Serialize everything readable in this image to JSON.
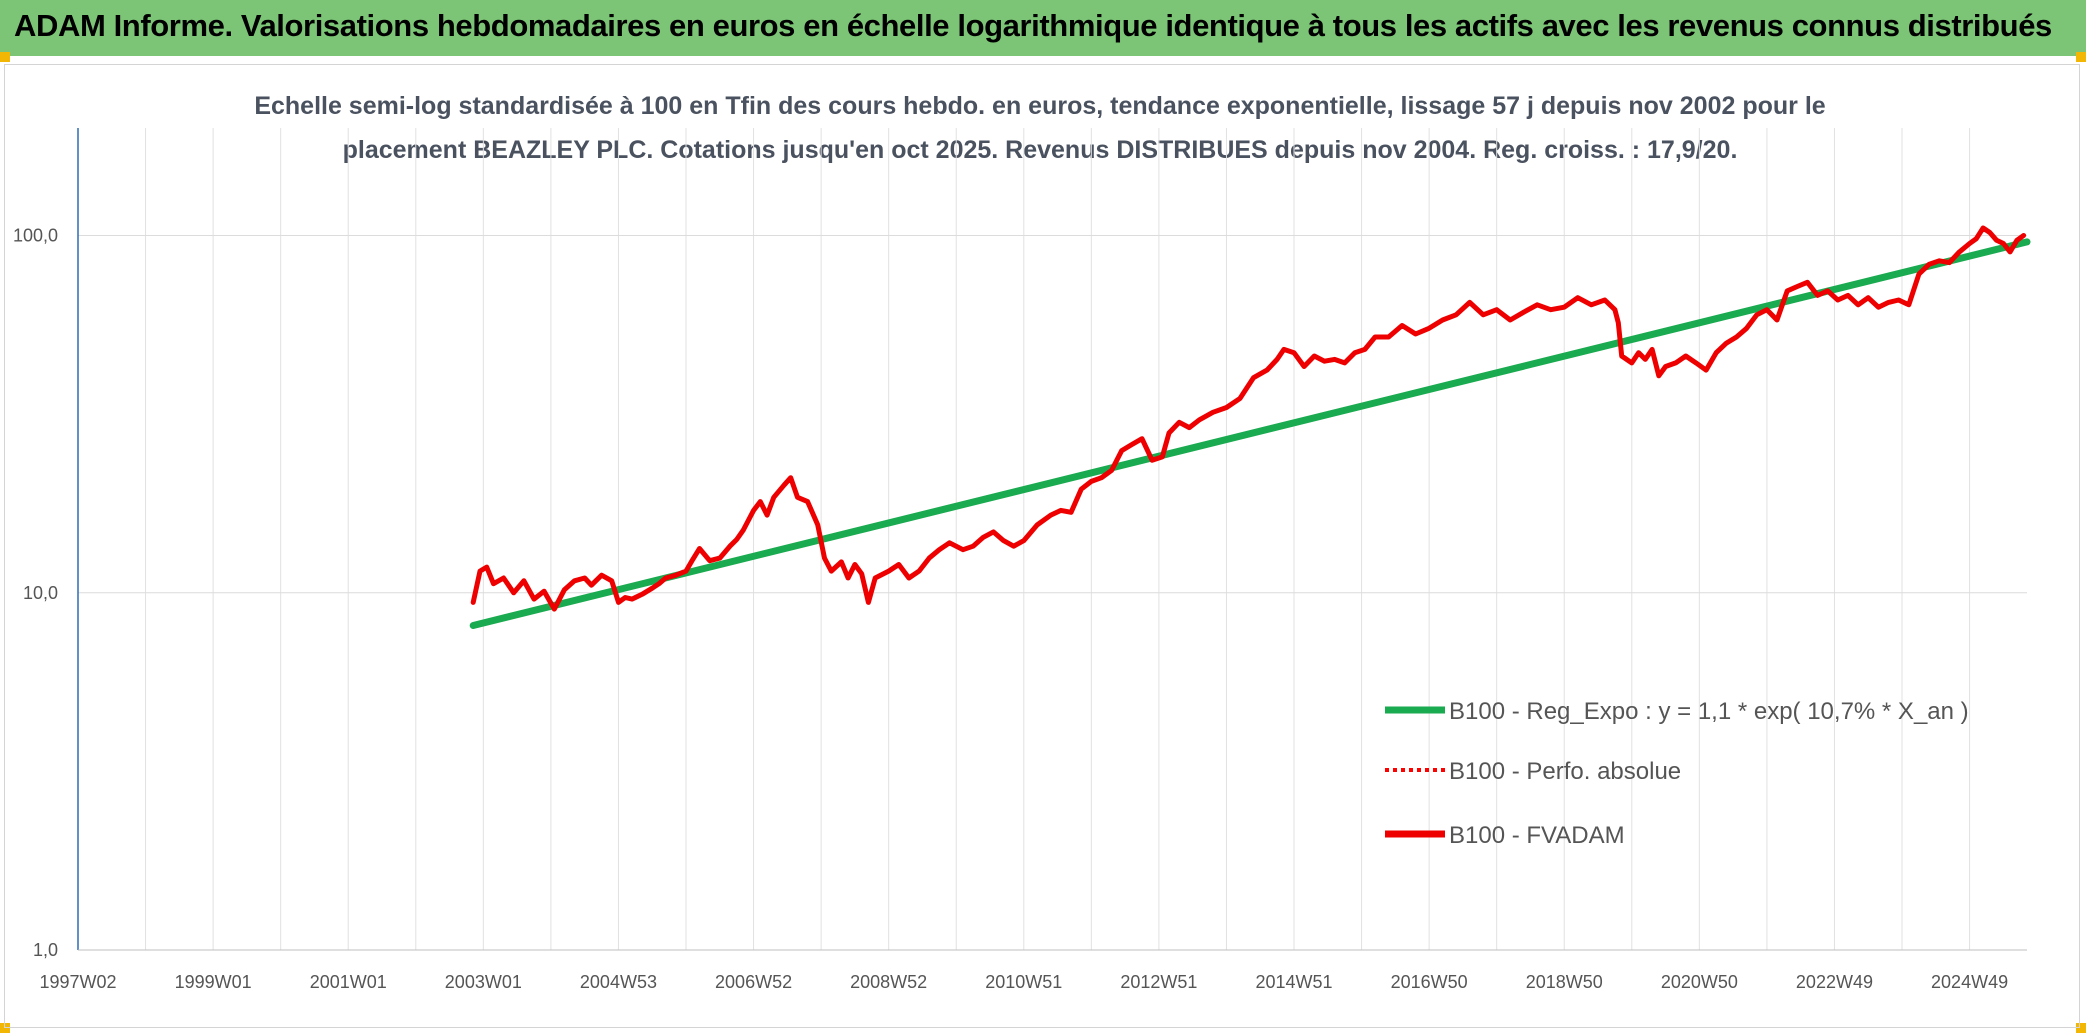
{
  "banner": {
    "title": "ADAM Informe. Valorisations hebdomadaires en euros en échelle logarithmique identique à tous les actifs avec les revenus connus distribués",
    "color": "#7cc576"
  },
  "chart_data": {
    "type": "line",
    "title_line1": "Echelle semi-log standardisée à 100 en Tfin des cours hebdo. en euros, tendance exponentielle, lissage 57 j depuis nov 2002 pour le",
    "title_line2": "placement BEAZLEY PLC. Cotations jusqu'en oct 2025. Revenus DISTRIBUES depuis nov 2004. Reg. croiss. : 17,9/20.",
    "y_scale": "log",
    "ylim": [
      1,
      200
    ],
    "y_ticks": [
      1,
      10,
      100
    ],
    "y_tick_labels": [
      "1,0",
      "10,0",
      "100,0"
    ],
    "xlim": [
      1997.0,
      2025.85
    ],
    "x_ticks": [
      1997.0,
      1999.0,
      2001.0,
      2003.0,
      2005.0,
      2007.0,
      2009.0,
      2011.0,
      2013.0,
      2015.0,
      2017.0,
      2019.0,
      2021.0,
      2023.0,
      2025.0
    ],
    "x_tick_labels": [
      "1997W02",
      "1999W01",
      "2001W01",
      "2003W01",
      "2004W53",
      "2006W52",
      "2008W52",
      "2010W51",
      "2012W51",
      "2014W51",
      "2016W50",
      "2018W50",
      "2020W50",
      "2022W49",
      "2024W49"
    ],
    "grid": true,
    "legend_position": "bottom-right",
    "series": [
      {
        "name": "B100 - Reg_Expo : y = 1,1 * exp( 10,7% *  X_an )",
        "color": "#1aaa50",
        "style": "solid",
        "x": [
          2002.85,
          2025.85
        ],
        "y": [
          8.1,
          96
        ]
      },
      {
        "name": "B100 - Perfo. absolue",
        "color": "#ff0000",
        "style": "dotted",
        "x": [],
        "y": []
      },
      {
        "name": "B100 - FVADAM",
        "color": "#ee0000",
        "style": "solid",
        "x": [
          2002.85,
          2002.95,
          2003.05,
          2003.15,
          2003.3,
          2003.45,
          2003.6,
          2003.75,
          2003.9,
          2004.05,
          2004.2,
          2004.35,
          2004.5,
          2004.6,
          2004.75,
          2004.9,
          2005.0,
          2005.1,
          2005.2,
          2005.35,
          2005.5,
          2005.6,
          2005.7,
          2005.85,
          2006.0,
          2006.1,
          2006.2,
          2006.35,
          2006.5,
          2006.65,
          2006.75,
          2006.85,
          2007.0,
          2007.1,
          2007.2,
          2007.3,
          2007.45,
          2007.55,
          2007.65,
          2007.8,
          2007.95,
          2008.05,
          2008.15,
          2008.3,
          2008.4,
          2008.5,
          2008.6,
          2008.7,
          2008.8,
          2009.0,
          2009.15,
          2009.3,
          2009.45,
          2009.6,
          2009.75,
          2009.9,
          2010.1,
          2010.25,
          2010.4,
          2010.55,
          2010.7,
          2010.85,
          2011.0,
          2011.2,
          2011.4,
          2011.55,
          2011.7,
          2011.85,
          2012.0,
          2012.15,
          2012.3,
          2012.45,
          2012.6,
          2012.75,
          2012.9,
          2013.05,
          2013.15,
          2013.3,
          2013.45,
          2013.6,
          2013.8,
          2014.0,
          2014.2,
          2014.4,
          2014.6,
          2014.75,
          2014.85,
          2015.0,
          2015.15,
          2015.3,
          2015.45,
          2015.6,
          2015.75,
          2015.9,
          2016.05,
          2016.2,
          2016.4,
          2016.6,
          2016.8,
          2017.0,
          2017.2,
          2017.4,
          2017.6,
          2017.8,
          2018.0,
          2018.2,
          2018.4,
          2018.6,
          2018.8,
          2019.0,
          2019.2,
          2019.4,
          2019.6,
          2019.75,
          2019.8,
          2019.85,
          2020.0,
          2020.1,
          2020.2,
          2020.3,
          2020.4,
          2020.5,
          2020.65,
          2020.8,
          2020.95,
          2021.1,
          2021.25,
          2021.4,
          2021.55,
          2021.7,
          2021.85,
          2022.0,
          2022.15,
          2022.3,
          2022.45,
          2022.6,
          2022.75,
          2022.9,
          2023.05,
          2023.2,
          2023.35,
          2023.5,
          2023.65,
          2023.8,
          2023.95,
          2024.1,
          2024.25,
          2024.4,
          2024.55,
          2024.7,
          2024.85,
          2025.0,
          2025.1,
          2025.2,
          2025.3,
          2025.4,
          2025.5,
          2025.6,
          2025.7,
          2025.8
        ],
        "y": [
          9.4,
          11.5,
          11.8,
          10.6,
          11.0,
          10.0,
          10.8,
          9.6,
          10.1,
          9.0,
          10.2,
          10.8,
          11.0,
          10.5,
          11.2,
          10.8,
          9.4,
          9.7,
          9.6,
          9.9,
          10.3,
          10.6,
          11.0,
          11.2,
          11.5,
          12.4,
          13.3,
          12.3,
          12.5,
          13.5,
          14.1,
          15.0,
          17.0,
          18.0,
          16.5,
          18.5,
          20.0,
          21.0,
          18.5,
          18.0,
          15.5,
          12.5,
          11.5,
          12.2,
          11.0,
          12.0,
          11.3,
          9.4,
          11.0,
          11.5,
          12.0,
          11.0,
          11.5,
          12.5,
          13.2,
          13.8,
          13.2,
          13.5,
          14.3,
          14.8,
          14.0,
          13.5,
          14.0,
          15.5,
          16.5,
          17.0,
          16.8,
          19.5,
          20.5,
          21.0,
          22.0,
          25.0,
          26.0,
          27.0,
          23.5,
          24.0,
          28.0,
          30.0,
          29.0,
          30.5,
          32.0,
          33.0,
          35.0,
          40.0,
          42.0,
          45.0,
          48.0,
          47.0,
          43.0,
          46.0,
          44.5,
          45.0,
          44.0,
          47.0,
          48.0,
          52.0,
          52.0,
          56.0,
          53.0,
          55.0,
          58.0,
          60.0,
          65.0,
          60.0,
          62.0,
          58.0,
          61.0,
          64.0,
          62.0,
          63.0,
          67.0,
          64.0,
          66.0,
          62.0,
          57.0,
          46.0,
          44.0,
          47.0,
          45.0,
          48.0,
          40.5,
          43.0,
          44.0,
          46.0,
          44.0,
          42.0,
          47.0,
          50.0,
          52.0,
          55.0,
          60.0,
          62.0,
          58.0,
          70.0,
          72.0,
          74.0,
          68.0,
          70.0,
          66.0,
          68.0,
          64.0,
          67.0,
          63.0,
          65.0,
          66.0,
          64.0,
          78.0,
          83.0,
          85.0,
          84.0,
          90.0,
          95.0,
          98.0,
          105.0,
          102.0,
          97.0,
          95.0,
          90.0,
          97.0,
          100.0
        ]
      }
    ]
  }
}
